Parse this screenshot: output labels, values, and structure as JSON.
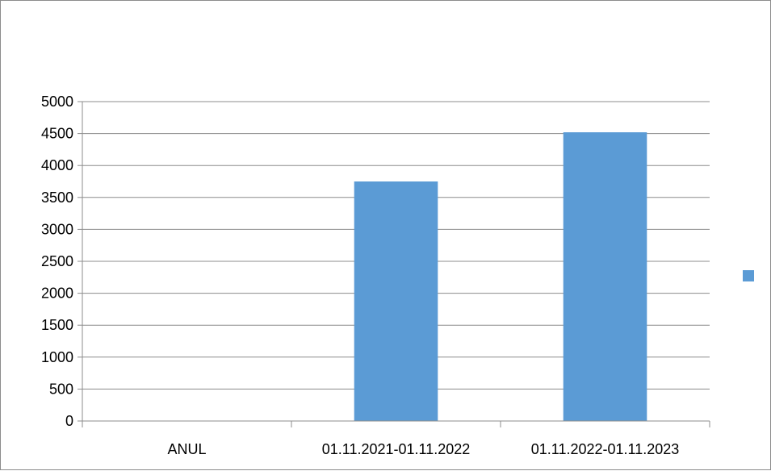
{
  "chart_data": {
    "type": "bar",
    "title": "",
    "xlabel": "",
    "ylabel": "",
    "categories": [
      "ANUL",
      "01.11.2021-01.11.2022",
      "01.11.2022-01.11.2023"
    ],
    "series": [
      {
        "values": [
          0,
          3750,
          4520
        ],
        "color": "#5b9bd5"
      }
    ],
    "ylim": [
      0,
      5000
    ],
    "yticks": [
      "0",
      "500",
      "1000",
      "1500",
      "2000",
      "2500",
      "3000",
      "3500",
      "4000",
      "4500",
      "5000"
    ],
    "grid": true,
    "legend_position": "right",
    "gridline_color": "#8c8c8c",
    "axis_color": "#8c8c8c"
  }
}
